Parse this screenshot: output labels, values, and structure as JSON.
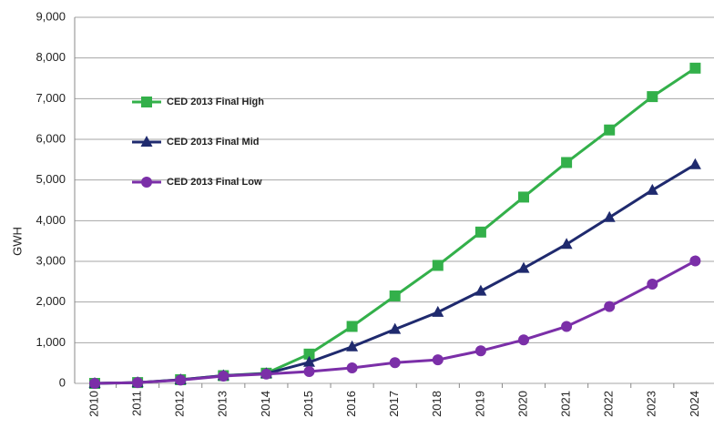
{
  "chart_data": {
    "type": "line",
    "y_label": "GWH",
    "categories": [
      "2010",
      "2011",
      "2012",
      "2013",
      "2014",
      "2015",
      "2016",
      "2017",
      "2018",
      "2019",
      "2020",
      "2021",
      "2022",
      "2023",
      "2024"
    ],
    "series": [
      {
        "name": "CED 2013 Final High",
        "color": "#33b04a",
        "marker": "square",
        "values": [
          0,
          20,
          90,
          190,
          250,
          720,
          1400,
          2150,
          2900,
          3720,
          4580,
          5430,
          6230,
          7050,
          7750
        ]
      },
      {
        "name": "CED 2013 Final Mid",
        "color": "#1f2a6e",
        "marker": "triangle",
        "values": [
          0,
          20,
          90,
          190,
          240,
          520,
          900,
          1330,
          1750,
          2270,
          2830,
          3420,
          4080,
          4750,
          5380
        ]
      },
      {
        "name": "CED 2013 Final Low",
        "color": "#7b2fa8",
        "marker": "circle",
        "values": [
          0,
          20,
          80,
          180,
          230,
          290,
          380,
          510,
          580,
          800,
          1070,
          1400,
          1890,
          2440,
          3010
        ]
      }
    ],
    "ylim": [
      0,
      9000
    ],
    "yticks": [
      0,
      {
        "value": 1000,
        "label": "1,000"
      },
      {
        "value": 2000,
        "label": "2,000"
      },
      {
        "value": 3000,
        "label": "3,000"
      },
      {
        "value": 4000,
        "label": "4,000"
      },
      {
        "value": 5000,
        "label": "5,000"
      },
      {
        "value": 6000,
        "label": "6,000"
      },
      {
        "value": 7000,
        "label": "7,000"
      },
      {
        "value": 8000,
        "label": "8,000"
      },
      {
        "value": 9000,
        "label": "9,000"
      }
    ],
    "grid": true,
    "legend": "upper left"
  }
}
